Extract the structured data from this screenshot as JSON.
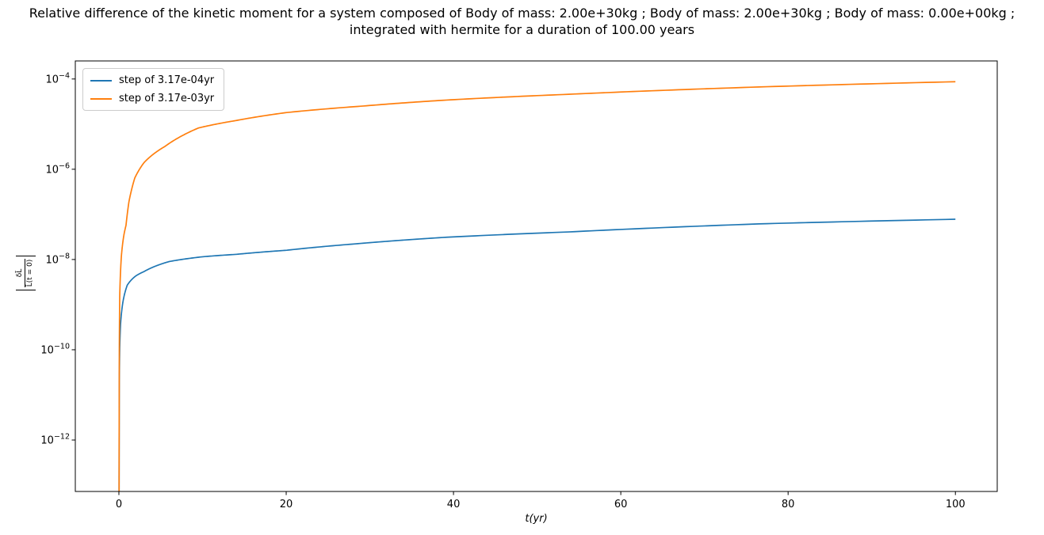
{
  "title": {
    "lines": [
      "Relative difference of the kinetic moment for a system composed of Body of mass: 2.00e+30kg ; Body of mass: 2.00e+30kg ; Body of mass: 0.00e+00kg ;",
      "integrated with hermite for a duration of 100.00 years"
    ]
  },
  "legend": {
    "items": [
      {
        "label": "step of 3.17e-04yr",
        "color": "#1f77b4"
      },
      {
        "label": "step of 3.17e-03yr",
        "color": "#ff7f0e"
      }
    ]
  },
  "axes": {
    "xlabel": "t(yr)",
    "ylabel_numerator": "δL̄",
    "ylabel_denominator": "L̄(t = 0)",
    "x_ticks": [
      0,
      20,
      40,
      60,
      80,
      100
    ],
    "y_tick_exponents": [
      -4,
      -6,
      -8,
      -10,
      -12
    ]
  },
  "chart_data": {
    "type": "line",
    "title": "Relative difference of the kinetic moment for a system composed of Body of mass: 2.00e+30kg ; Body of mass: 2.00e+30kg ; Body of mass: 0.00e+00kg ; integrated with hermite for a duration of 100.00 years",
    "xlabel": "t(yr)",
    "ylabel": "|δL̄/L̄(t=0)|",
    "xscale": "linear",
    "yscale": "log",
    "xlim": [
      -5.21,
      105.0
    ],
    "ylim_log10": [
      -13.14,
      -3.6
    ],
    "x_ticks": [
      0,
      20,
      40,
      60,
      80,
      100
    ],
    "y_tick_labels": [
      "10⁻⁴",
      "10⁻⁶",
      "10⁻⁸",
      "10⁻¹⁰",
      "10⁻¹²"
    ],
    "grid": false,
    "legend_position": "upper left",
    "series": [
      {
        "name": "step of 3.17e-04yr",
        "color": "#1f77b4",
        "points": [
          [
            0.02,
            3e-14
          ],
          [
            0.05,
            2e-11
          ],
          [
            0.1,
            1.1e-10
          ],
          [
            0.2,
            3.7e-10
          ],
          [
            0.5,
            1.2e-09
          ],
          [
            1,
            2.7e-09
          ],
          [
            2,
            4.3e-09
          ],
          [
            3,
            5.4e-09
          ],
          [
            6,
            9e-09
          ],
          [
            10,
            1.15e-08
          ],
          [
            14,
            1.3e-08
          ],
          [
            20,
            1.6e-08
          ],
          [
            28,
            2.2e-08
          ],
          [
            39,
            3.1e-08
          ],
          [
            54,
            4.1e-08
          ],
          [
            77,
            6.2e-08
          ],
          [
            100,
            7.8e-08
          ]
        ]
      },
      {
        "name": "step of 3.17e-03yr",
        "color": "#ff7f0e",
        "points": [
          [
            0.02,
            1e-14
          ],
          [
            0.05,
            1e-10
          ],
          [
            0.1,
            1.5e-09
          ],
          [
            0.3,
            1.2e-08
          ],
          [
            0.6,
            3.5e-08
          ],
          [
            0.85,
            5.7e-08
          ],
          [
            1.2,
            1.9e-07
          ],
          [
            1.9,
            6.4e-07
          ],
          [
            3,
            1.4e-06
          ],
          [
            5.5,
            3.2e-06
          ],
          [
            9.5,
            8.2e-06
          ],
          [
            14,
            1.2e-05
          ],
          [
            20,
            1.8e-05
          ],
          [
            29,
            2.5e-05
          ],
          [
            39,
            3.4e-05
          ],
          [
            54,
            4.6e-05
          ],
          [
            77,
            6.7e-05
          ],
          [
            100,
            8.7e-05
          ]
        ]
      }
    ]
  }
}
